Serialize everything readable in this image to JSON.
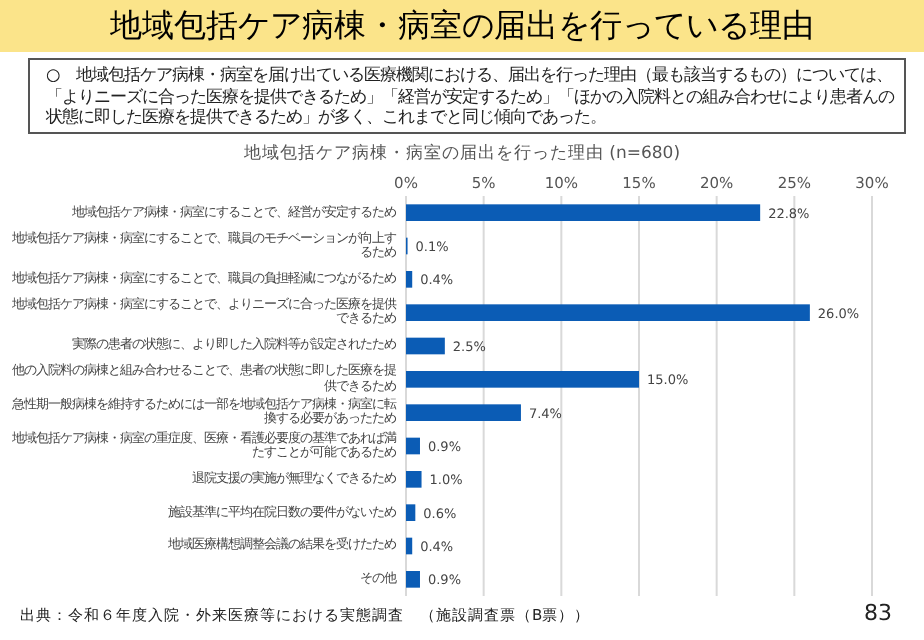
{
  "chart_data": {
    "type": "bar",
    "orientation": "horizontal",
    "title": "地域包括ケア病棟・病室の届出を行っている理由",
    "subtitle": "地域包括ケア病棟・病室の届出を行った理由 (n=680)",
    "annotations": [
      "○　地域包括ケア病棟・病室を届け出ている医療機関における、届出を行った理由（最も該当するもの）については、「よりニーズに合った医療を提供できるため」「経営が安定するため」「ほかの入院料との組み合わせにより患者んの状態に即した医療を提供できるため」が多く、これまでと同じ傾向であった。",
      "出典：令和６年度入院・外来医療等における実態調査　（施設調査票（B票））",
      "83"
    ],
    "categories": [
      "地域包括ケア病棟・病室にすることで、経営が安定するため",
      "地域包括ケア病棟・病室にすることで、職員のモチベーションが向上するため",
      "地域包括ケア病棟・病室にすることで、職員の負担軽減につながるため",
      "地域包括ケア病棟・病室にすることで、よりニーズに合った医療を提供できるため",
      "実際の患者の状態に、より即した入院料等が設定されたため",
      "他の入院料の病棟と組み合わせることで、患者の状態に即した医療を提供できるため",
      "急性期一般病棟を維持するためには一部を地域包括ケア病棟・病室に転換する必要があったため",
      "地域包括ケア病棟・病室の重症度、医療・看護必要度の基準であれば満たすことが可能であるため",
      "退院支援の実施が無理なくできるため",
      "施設基準に平均在院日数の要件がないため",
      "地域医療構想調整会議の結果を受けたため",
      "その他"
    ],
    "values": [
      22.8,
      0.1,
      0.4,
      26.0,
      2.5,
      15.0,
      7.4,
      0.9,
      1.0,
      0.6,
      0.4,
      0.9
    ],
    "value_labels": [
      "22.8%",
      "0.1%",
      "0.4%",
      "26.0%",
      "2.5%",
      "15.0%",
      "7.4%",
      "0.9%",
      "1.0%",
      "0.6%",
      "0.4%",
      "0.9%"
    ],
    "color": "#0b5cb5",
    "xlim": [
      0,
      30
    ],
    "xticks": [
      {
        "value": 0,
        "label": "0%"
      },
      {
        "value": 5,
        "label": "5%"
      },
      {
        "value": 10,
        "label": "10%"
      },
      {
        "value": 15,
        "label": "15%"
      },
      {
        "value": 20,
        "label": "20%"
      },
      {
        "value": 25,
        "label": "25%"
      },
      {
        "value": 30,
        "label": "30%"
      }
    ],
    "grid": "x"
  }
}
